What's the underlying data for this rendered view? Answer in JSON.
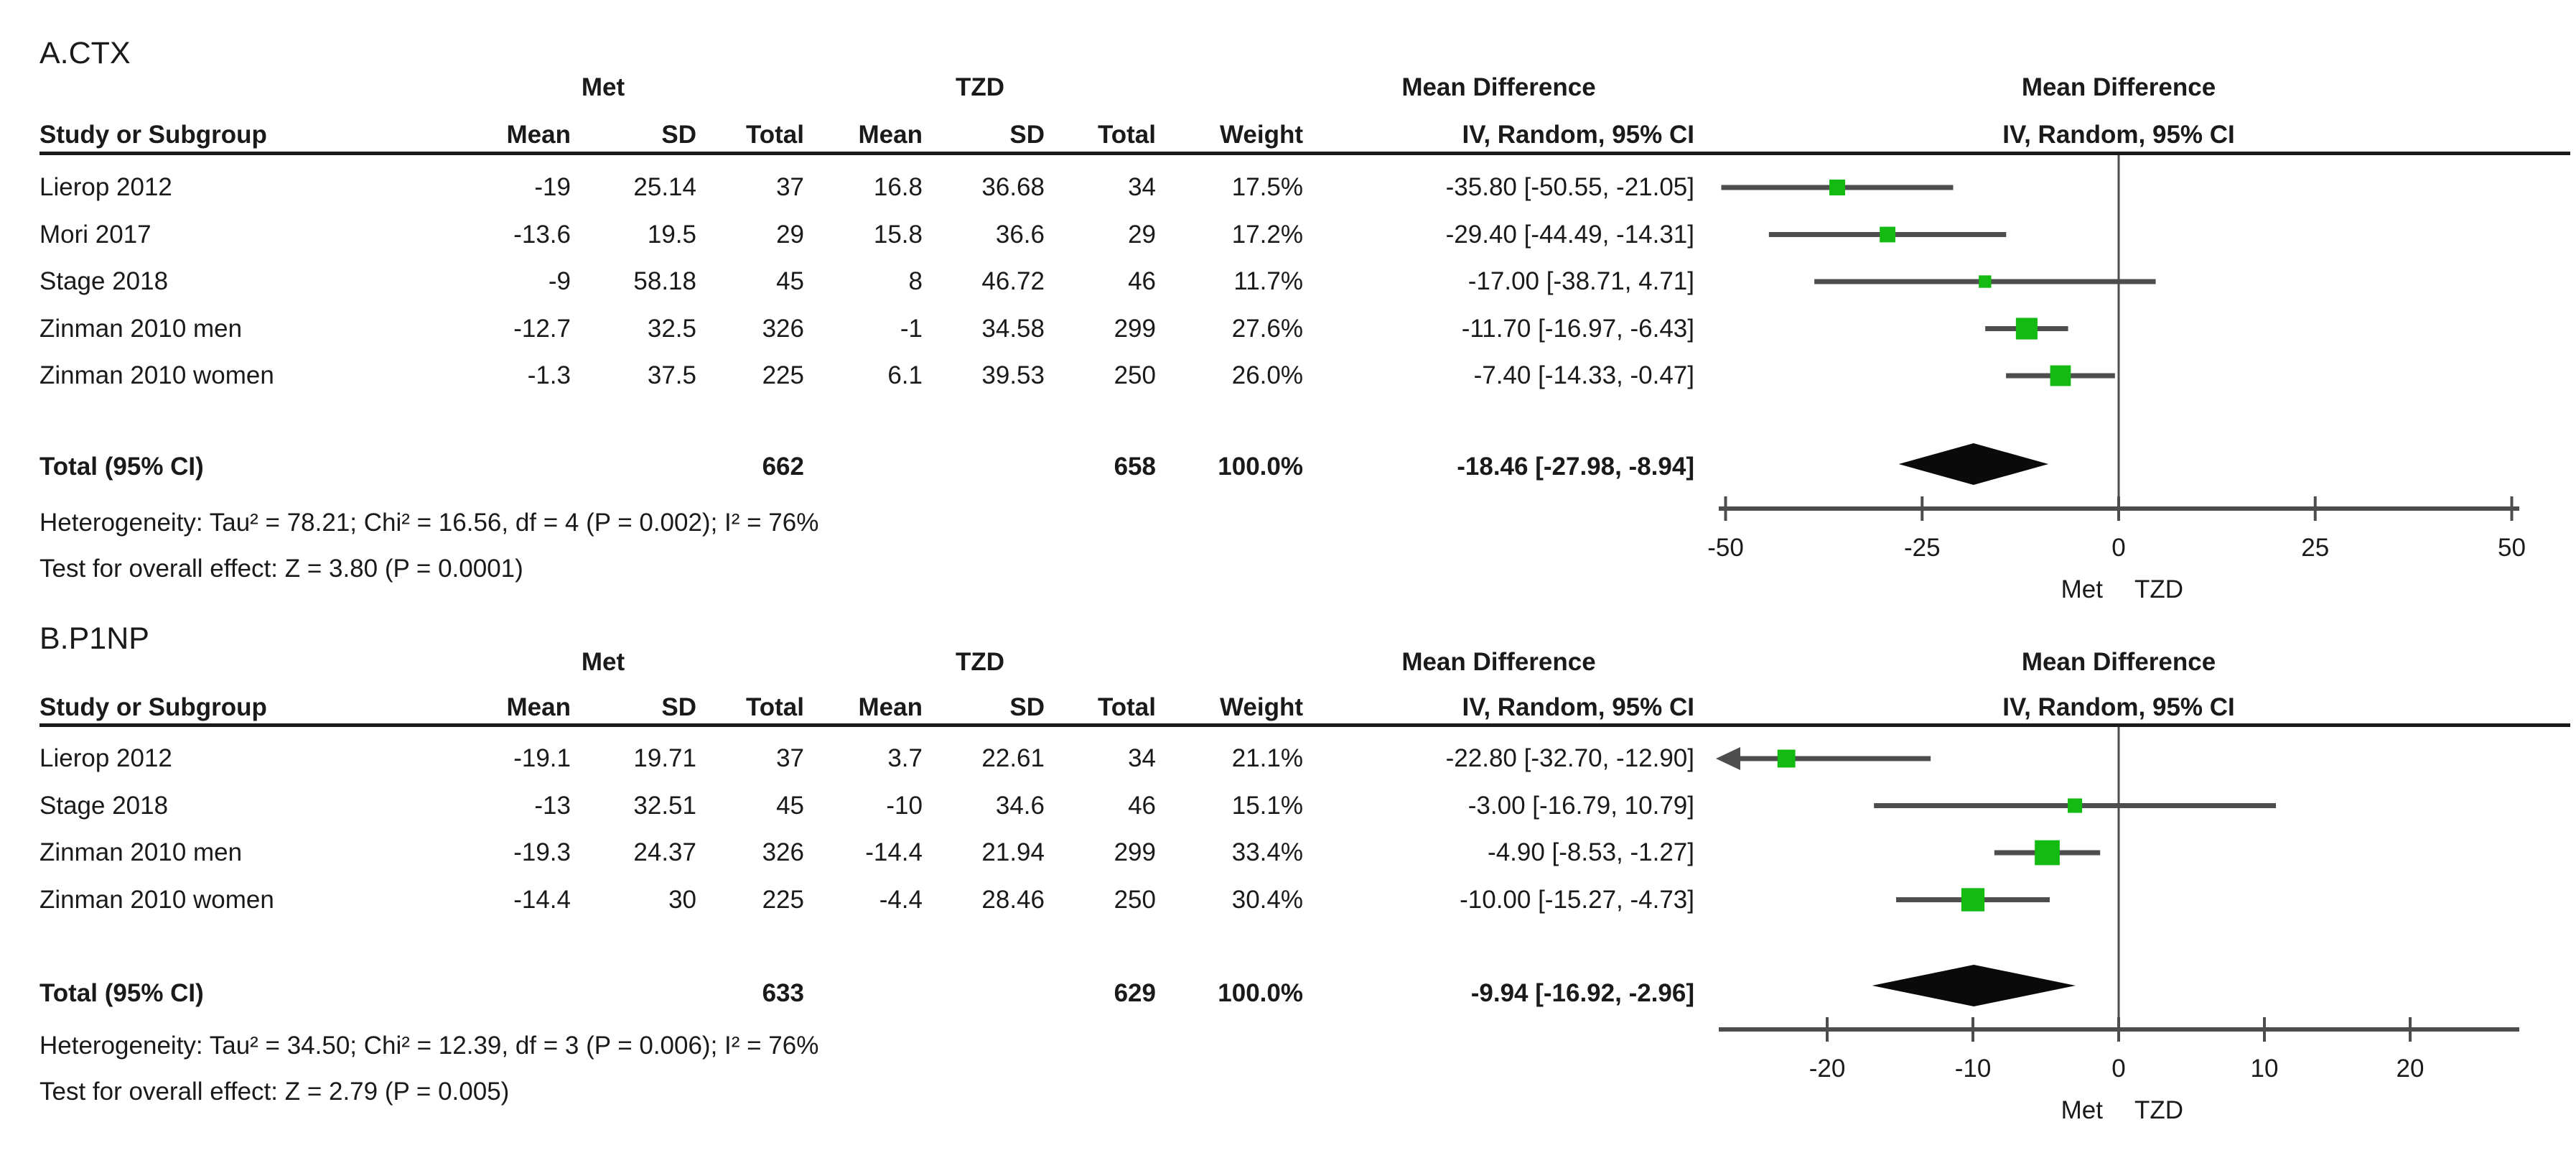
{
  "colors": {
    "marker": "#12ba12",
    "line": "#4d4d4d",
    "diamond": "#0a0a0a",
    "text": "#1a1a1a",
    "rule": "#1a1a1a"
  },
  "chart_data": [
    {
      "type": "forest",
      "panel_label": "A.CTX",
      "outcome": "CTX",
      "effect_label": "Mean Difference",
      "method_label": "IV, Random, 95% CI",
      "group_left": "Met",
      "group_right": "TZD",
      "columns": {
        "study": "Study or Subgroup",
        "mean": "Mean",
        "sd": "SD",
        "total": "Total",
        "weight": "Weight"
      },
      "studies": [
        {
          "cells": [
            "Lierop 2012",
            "-19",
            "25.14",
            "37",
            "16.8",
            "36.68",
            "34",
            "17.5%",
            "-35.80 [-50.55, -21.05]"
          ],
          "md": -35.8,
          "lo": -50.55,
          "hi": -21.05,
          "weight": 17.5
        },
        {
          "cells": [
            "Mori 2017",
            "-13.6",
            "19.5",
            "29",
            "15.8",
            "36.6",
            "29",
            "17.2%",
            "-29.40 [-44.49, -14.31]"
          ],
          "md": -29.4,
          "lo": -44.49,
          "hi": -14.31,
          "weight": 17.2
        },
        {
          "cells": [
            "Stage 2018",
            "-9",
            "58.18",
            "45",
            "8",
            "46.72",
            "46",
            "11.7%",
            "-17.00 [-38.71, 4.71]"
          ],
          "md": -17.0,
          "lo": -38.71,
          "hi": 4.71,
          "weight": 11.7
        },
        {
          "cells": [
            "Zinman 2010 men",
            "-12.7",
            "32.5",
            "326",
            "-1",
            "34.58",
            "299",
            "27.6%",
            "-11.70 [-16.97, -6.43]"
          ],
          "md": -11.7,
          "lo": -16.97,
          "hi": -6.43,
          "weight": 27.6
        },
        {
          "cells": [
            "Zinman 2010 women",
            "-1.3",
            "37.5",
            "225",
            "6.1",
            "39.53",
            "250",
            "26.0%",
            "-7.40 [-14.33, -0.47]"
          ],
          "md": -7.4,
          "lo": -14.33,
          "hi": -0.47,
          "weight": 26.0
        }
      ],
      "total": {
        "label": "Total (95% CI)",
        "met_total": "662",
        "tzd_total": "658",
        "weight": "100.0%",
        "ci_text": "-18.46 [-27.98, -8.94]",
        "md": -18.46,
        "lo": -27.98,
        "hi": -8.94
      },
      "heterogeneity": "Heterogeneity: Tau² = 78.21; Chi² = 16.56, df = 4 (P = 0.002); I² = 76%",
      "overall_effect": "Test for overall effect: Z = 3.80 (P = 0.0001)",
      "axis": {
        "ticks": [
          -50,
          -25,
          0,
          25,
          50
        ],
        "min": -50.9,
        "max": 51.0
      }
    },
    {
      "type": "forest",
      "panel_label": "B.P1NP",
      "outcome": "P1NP",
      "effect_label": "Mean Difference",
      "method_label": "IV, Random, 95% CI",
      "group_left": "Met",
      "group_right": "TZD",
      "columns": {
        "study": "Study or Subgroup",
        "mean": "Mean",
        "sd": "SD",
        "total": "Total",
        "weight": "Weight"
      },
      "studies": [
        {
          "cells": [
            "Lierop 2012",
            "-19.1",
            "19.71",
            "37",
            "3.7",
            "22.61",
            "34",
            "21.1%",
            "-22.80 [-32.70, -12.90]"
          ],
          "md": -22.8,
          "lo": -32.7,
          "hi": -12.9,
          "weight": 21.1
        },
        {
          "cells": [
            "Stage 2018",
            "-13",
            "32.51",
            "45",
            "-10",
            "34.6",
            "46",
            "15.1%",
            "-3.00 [-16.79, 10.79]"
          ],
          "md": -3.0,
          "lo": -16.79,
          "hi": 10.79,
          "weight": 15.1
        },
        {
          "cells": [
            "Zinman 2010 men",
            "-19.3",
            "24.37",
            "326",
            "-14.4",
            "21.94",
            "299",
            "33.4%",
            "-4.90 [-8.53, -1.27]"
          ],
          "md": -4.9,
          "lo": -8.53,
          "hi": -1.27,
          "weight": 33.4
        },
        {
          "cells": [
            "Zinman 2010 women",
            "-14.4",
            "30",
            "225",
            "-4.4",
            "28.46",
            "250",
            "30.4%",
            "-10.00 [-15.27, -4.73]"
          ],
          "md": -10.0,
          "lo": -15.27,
          "hi": -4.73,
          "weight": 30.4
        }
      ],
      "total": {
        "label": "Total (95% CI)",
        "met_total": "633",
        "tzd_total": "629",
        "weight": "100.0%",
        "ci_text": "-9.94 [-16.92, -2.96]",
        "md": -9.94,
        "lo": -16.92,
        "hi": -2.96
      },
      "heterogeneity": "Heterogeneity: Tau² = 34.50; Chi² = 12.39, df = 3 (P = 0.006); I² = 76%",
      "overall_effect": "Test for overall effect: Z = 2.79 (P = 0.005)",
      "axis": {
        "ticks": [
          -20,
          -10,
          0,
          10,
          20
        ],
        "min": -27.4,
        "max": 27.5
      }
    }
  ]
}
